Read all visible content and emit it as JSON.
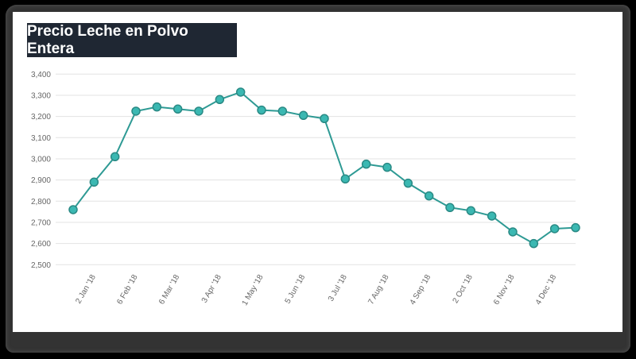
{
  "chart_data": {
    "type": "line",
    "title": "Precio Leche en Polvo Entera",
    "xlabel": "",
    "ylabel": "",
    "ylim": [
      2500,
      3400
    ],
    "yticks": [
      "2,500",
      "2,600",
      "2,700",
      "2,800",
      "2,900",
      "3,000",
      "3,100",
      "3,200",
      "3,300",
      "3,400"
    ],
    "ytick_values": [
      2500,
      2600,
      2700,
      2800,
      2900,
      3000,
      3100,
      3200,
      3300,
      3400
    ],
    "x_tick_labels": [
      "",
      "2 Jan '18",
      "",
      "6 Feb '18",
      "",
      "6 Mar '18",
      "",
      "3 Apr '18",
      "",
      "1 May '18",
      "",
      "5 Jun '18",
      "",
      "3 Jul '18",
      "",
      "7 Aug '18",
      "",
      "4 Sep '18",
      "",
      "2 Oct '18",
      "",
      "6 Nov '18",
      "",
      "4 Dec '18",
      ""
    ],
    "values": [
      2760,
      2890,
      3010,
      3225,
      3245,
      3235,
      3225,
      3280,
      3315,
      3230,
      3225,
      3205,
      3190,
      2905,
      2975,
      2960,
      2885,
      2825,
      2770,
      2755,
      2730,
      2655,
      2600,
      2670,
      2675
    ],
    "grid": true,
    "colors": {
      "line": "#2e9a94",
      "marker": "#3bb8b2",
      "marker_edge": "#2a8a85",
      "title_bg": "#1f2733"
    }
  }
}
